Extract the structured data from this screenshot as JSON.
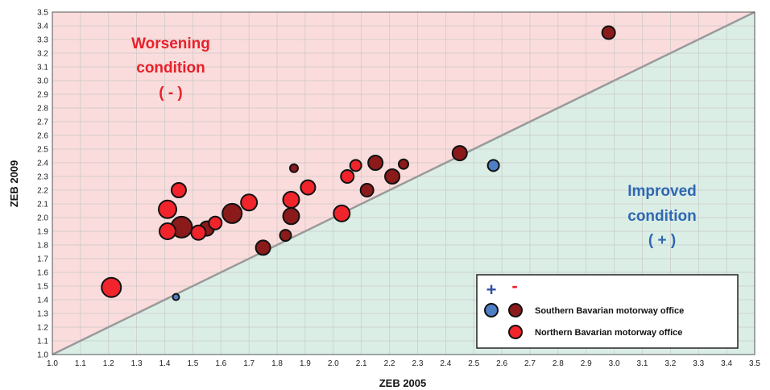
{
  "chart_data": {
    "type": "scatter",
    "title": "",
    "xlabel": "ZEB 2005",
    "ylabel": "ZEB 2009",
    "xlim": [
      1.0,
      3.5
    ],
    "ylim": [
      1.0,
      3.5
    ],
    "xticks": [
      "1.0",
      "1.1",
      "1.2",
      "1.3",
      "1.4",
      "1.5",
      "1.6",
      "1.7",
      "1.8",
      "1.9",
      "2.0",
      "2.1",
      "2.2",
      "2.3",
      "2.4",
      "2.5",
      "2.6",
      "2.7",
      "2.8",
      "2.9",
      "3.0",
      "3.1",
      "3.2",
      "3.3",
      "3.4",
      "3.5"
    ],
    "yticks": [
      "1.0",
      "1.1",
      "1.2",
      "1.3",
      "1.4",
      "1.5",
      "1.6",
      "1.7",
      "1.8",
      "1.9",
      "2.0",
      "2.1",
      "2.2",
      "2.3",
      "2.4",
      "2.5",
      "2.6",
      "2.7",
      "2.8",
      "2.9",
      "3.0",
      "3.1",
      "3.2",
      "3.3",
      "3.4",
      "3.5"
    ],
    "grid": true,
    "diagonal": "y = x",
    "regions": {
      "worsening": {
        "lines": [
          "Worsening",
          "condition",
          "( - )"
        ],
        "color": "#e8212a",
        "background": "#fbdcdc"
      },
      "improved": {
        "lines": [
          "Improved",
          "condition",
          "( + )"
        ],
        "color": "#2e68b2",
        "background": "#dbeee6"
      }
    },
    "legend": {
      "position": "bottom-right",
      "symbols": [
        "+",
        "-"
      ],
      "symbol_colors": [
        "#2e4fa3",
        "#e8212a"
      ],
      "entries": [
        {
          "label": "Southern Bavarian motorway office",
          "colors": [
            "#4e7ec4",
            "#8b1a1a"
          ]
        },
        {
          "label": "Northern Bavarian motorway office",
          "colors": [
            "#f0242a"
          ]
        }
      ]
    },
    "series": [
      {
        "name": "Southern Bavarian motorway office",
        "points": [
          {
            "x": 1.44,
            "y": 1.42,
            "size": 4,
            "change": "+"
          },
          {
            "x": 2.57,
            "y": 2.38,
            "size": 7,
            "change": "+"
          },
          {
            "x": 1.46,
            "y": 1.93,
            "size": 13,
            "change": "-"
          },
          {
            "x": 1.55,
            "y": 1.92,
            "size": 9,
            "change": "-"
          },
          {
            "x": 1.64,
            "y": 2.03,
            "size": 12,
            "change": "-"
          },
          {
            "x": 1.75,
            "y": 1.78,
            "size": 9,
            "change": "-"
          },
          {
            "x": 1.83,
            "y": 1.87,
            "size": 7,
            "change": "-"
          },
          {
            "x": 1.85,
            "y": 2.01,
            "size": 10,
            "change": "-"
          },
          {
            "x": 1.86,
            "y": 2.36,
            "size": 5,
            "change": "-"
          },
          {
            "x": 2.12,
            "y": 2.2,
            "size": 8,
            "change": "-"
          },
          {
            "x": 2.15,
            "y": 2.4,
            "size": 9,
            "change": "-"
          },
          {
            "x": 2.21,
            "y": 2.3,
            "size": 9,
            "change": "-"
          },
          {
            "x": 2.25,
            "y": 2.39,
            "size": 6,
            "change": "-"
          },
          {
            "x": 2.45,
            "y": 2.47,
            "size": 9,
            "change": "-"
          },
          {
            "x": 2.98,
            "y": 3.35,
            "size": 8,
            "change": "-"
          }
        ]
      },
      {
        "name": "Northern Bavarian motorway office",
        "points": [
          {
            "x": 1.21,
            "y": 1.49,
            "size": 12,
            "change": "-"
          },
          {
            "x": 1.41,
            "y": 2.06,
            "size": 11,
            "change": "-"
          },
          {
            "x": 1.41,
            "y": 1.9,
            "size": 10,
            "change": "-"
          },
          {
            "x": 1.45,
            "y": 2.2,
            "size": 9,
            "change": "-"
          },
          {
            "x": 1.52,
            "y": 1.89,
            "size": 9,
            "change": "-"
          },
          {
            "x": 1.58,
            "y": 1.96,
            "size": 8,
            "change": "-"
          },
          {
            "x": 1.7,
            "y": 2.11,
            "size": 10,
            "change": "-"
          },
          {
            "x": 1.85,
            "y": 2.13,
            "size": 10,
            "change": "-"
          },
          {
            "x": 1.91,
            "y": 2.22,
            "size": 9,
            "change": "-"
          },
          {
            "x": 2.03,
            "y": 2.03,
            "size": 10,
            "change": "-"
          },
          {
            "x": 2.05,
            "y": 2.3,
            "size": 8,
            "change": "-"
          },
          {
            "x": 2.08,
            "y": 2.38,
            "size": 7,
            "change": "-"
          }
        ]
      }
    ]
  }
}
